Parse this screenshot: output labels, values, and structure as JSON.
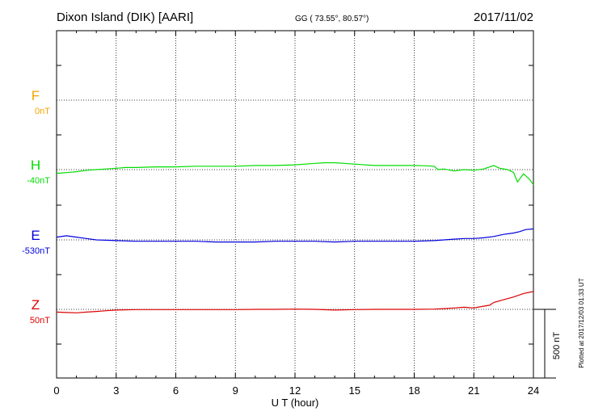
{
  "header": {
    "station": "Dixon Island (DIK)  [AARI]",
    "coords": "GG ( 73.55°,  80.57°)",
    "date": "2017/11/02"
  },
  "footer": {
    "plotted": "Plotted at 2017/12/03 01:33 UT"
  },
  "scale": {
    "label": "500 nT"
  },
  "channels": [
    {
      "name": "F",
      "offset": "0nT",
      "color": "#f5a300"
    },
    {
      "name": "H",
      "offset": "-40nT",
      "color": "#00dd00"
    },
    {
      "name": "E",
      "offset": "-530nT",
      "color": "#0000dd"
    },
    {
      "name": "Z",
      "offset": "50nT",
      "color": "#dd0000"
    }
  ],
  "chart_data": {
    "type": "line",
    "title": "Dixon Island (DIK)  [AARI]",
    "xlabel": "U T (hour)",
    "ylabel": "",
    "xlim": [
      0,
      24
    ],
    "x_ticks": [
      "0",
      "3",
      "6",
      "9",
      "12",
      "15",
      "18",
      "21",
      "24"
    ],
    "scale_bar_nT": 500,
    "grid": true,
    "series": [
      {
        "name": "H",
        "color": "#00dd00",
        "x": [
          0,
          0.5,
          1,
          1.5,
          2,
          2.5,
          3,
          3.5,
          4,
          5,
          6,
          7,
          8,
          9,
          10,
          11,
          12,
          12.5,
          13,
          13.5,
          14,
          15,
          16,
          17,
          18,
          18.5,
          19,
          19.2,
          19.5,
          20,
          20.5,
          21,
          21.5,
          22,
          22.3,
          22.7,
          23,
          23.2,
          23.5,
          23.8,
          24
        ],
        "y": [
          -67,
          -62,
          -55,
          -45,
          -40,
          -35,
          -30,
          -25,
          -25,
          -20,
          -20,
          -15,
          -15,
          -15,
          -10,
          -10,
          -5,
          0,
          5,
          10,
          10,
          0,
          -10,
          -10,
          -10,
          -12,
          -15,
          -40,
          -35,
          -50,
          -40,
          -45,
          -35,
          -10,
          -30,
          -40,
          -60,
          -130,
          -70,
          -110,
          -150
        ]
      },
      {
        "name": "E",
        "color": "#0000dd",
        "x": [
          0,
          0.5,
          1,
          1.5,
          2,
          3,
          4,
          5,
          6,
          7,
          8,
          9,
          10,
          11,
          12,
          13,
          14,
          15,
          16,
          17,
          18,
          19,
          19.5,
          20,
          20.5,
          21,
          21.5,
          22,
          22.5,
          23,
          23.3,
          23.6,
          24
        ],
        "y": [
          -510,
          -500,
          -510,
          -520,
          -530,
          -535,
          -540,
          -540,
          -540,
          -540,
          -545,
          -545,
          -545,
          -540,
          -540,
          -540,
          -545,
          -540,
          -540,
          -540,
          -540,
          -535,
          -530,
          -525,
          -520,
          -520,
          -515,
          -505,
          -490,
          -480,
          -470,
          -455,
          -450
        ]
      },
      {
        "name": "Z",
        "color": "#dd0000",
        "x": [
          0,
          0.5,
          1,
          1.5,
          2,
          2.5,
          3,
          4,
          5,
          6,
          7,
          8,
          9,
          10,
          11,
          12,
          13,
          14,
          15,
          16,
          17,
          18,
          19,
          19.5,
          20,
          20.5,
          21,
          21.3,
          21.8,
          22,
          22.5,
          23,
          23.5,
          24
        ],
        "y": [
          30,
          27,
          25,
          30,
          35,
          40,
          45,
          48,
          48,
          48,
          48,
          48,
          48,
          50,
          50,
          52,
          50,
          45,
          48,
          50,
          50,
          50,
          52,
          55,
          60,
          65,
          60,
          68,
          80,
          100,
          120,
          140,
          165,
          180
        ]
      }
    ]
  }
}
